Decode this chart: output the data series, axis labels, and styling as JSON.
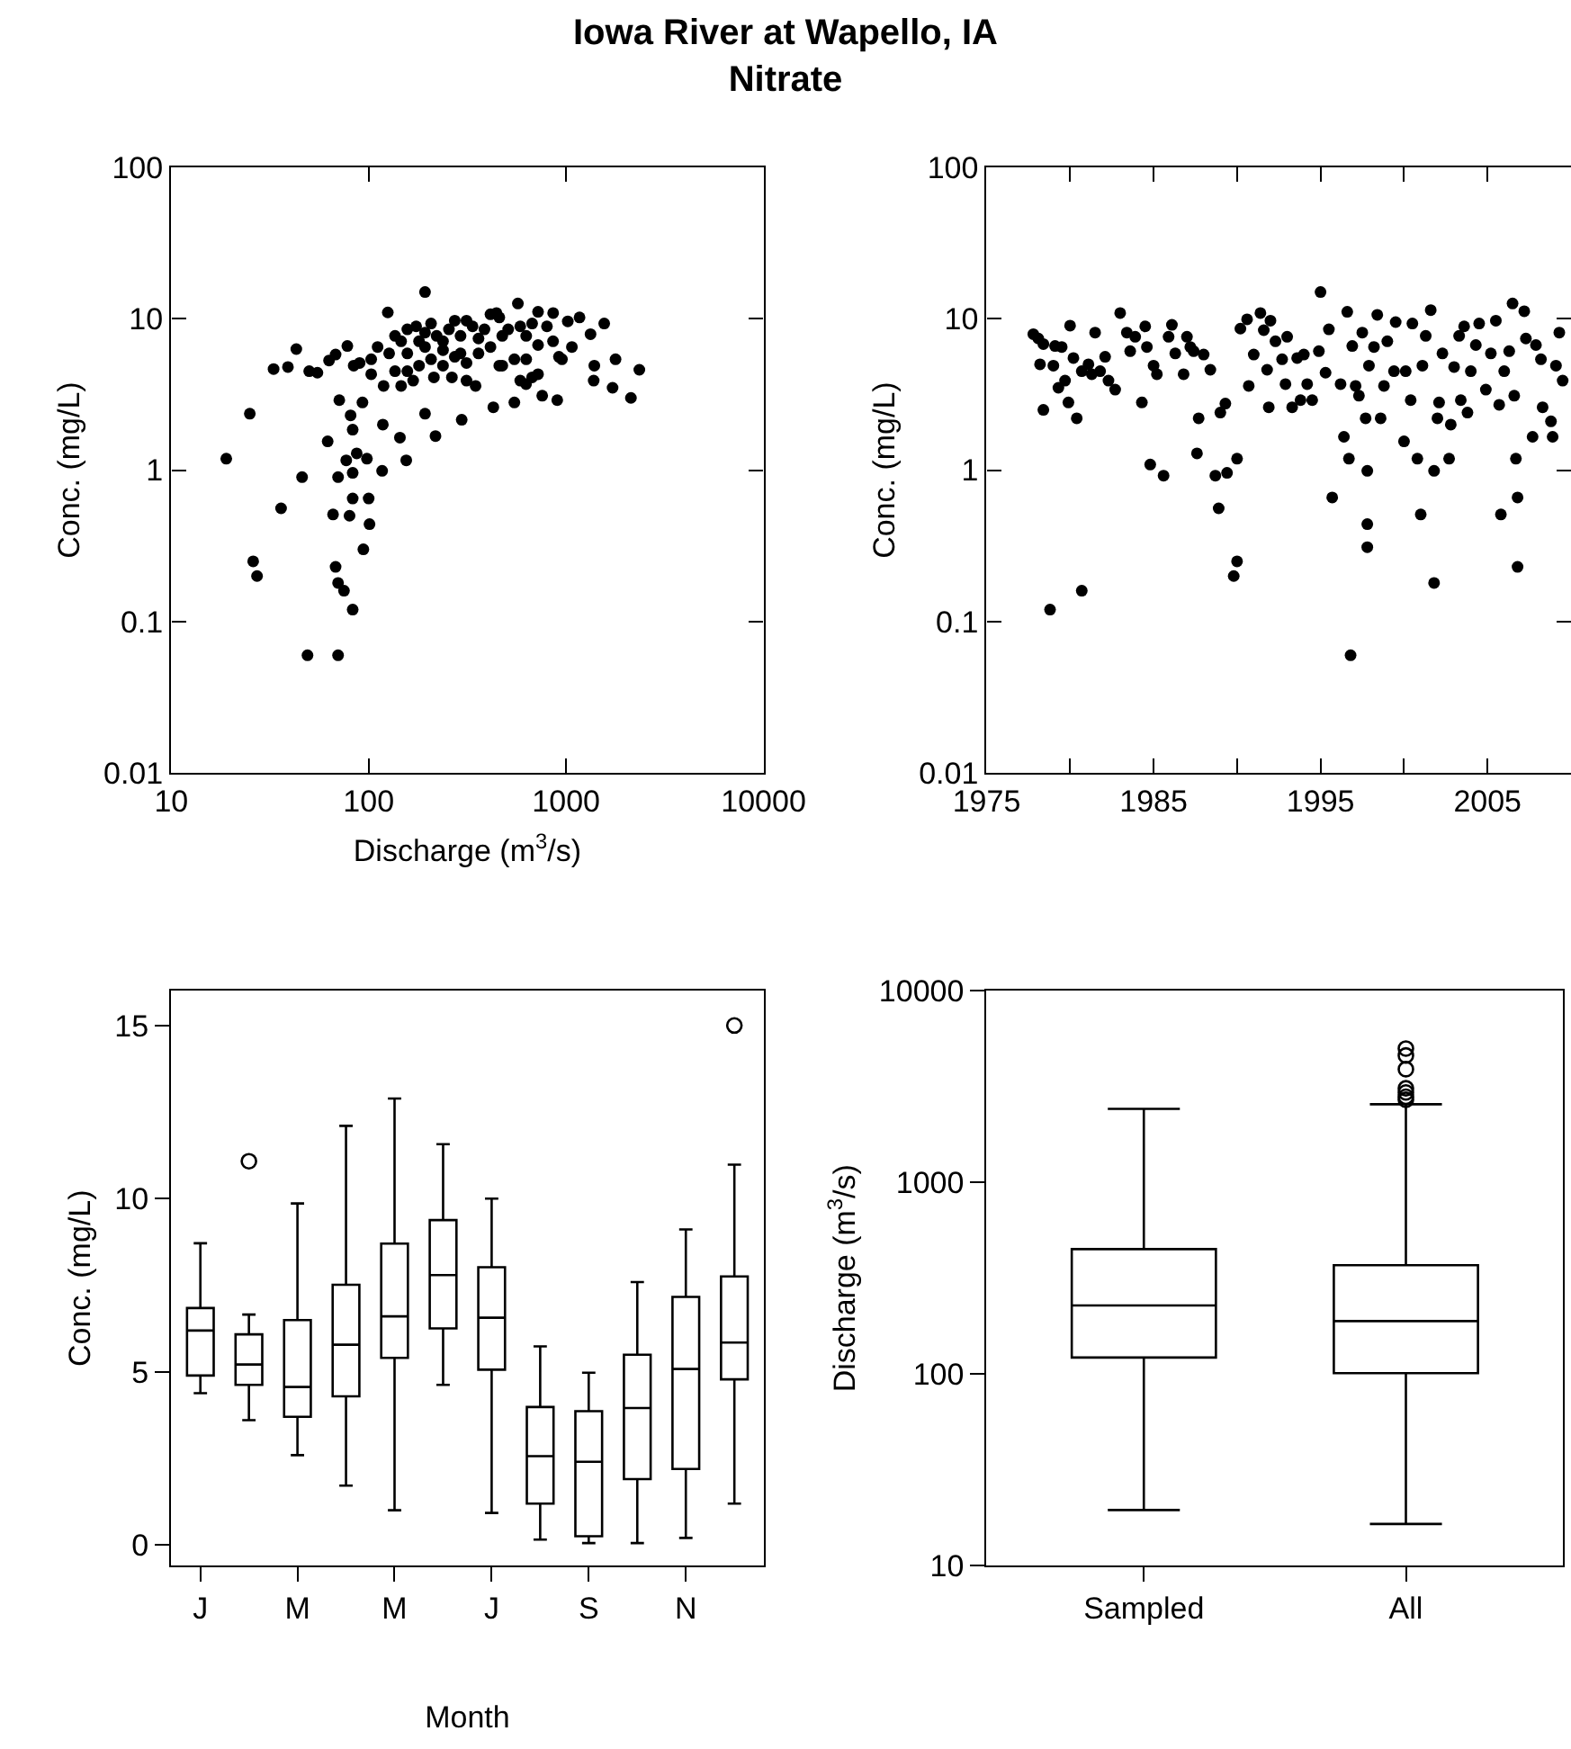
{
  "chart_data": [
    {
      "type": "scatter",
      "title": "Iowa River at Wapello, IA",
      "subtitle": "Nitrate",
      "xlabel": "Discharge (m$^{3}$/s)",
      "ylabel": "Conc. (mg/L)",
      "log": "xy",
      "marker": "circle",
      "color": "#000000",
      "xlim": [
        10,
        10000
      ],
      "xticks": [
        10,
        100,
        1000,
        10000
      ],
      "ylim": [
        0.01,
        100
      ],
      "yticks": [
        0.01,
        0.1,
        1,
        10,
        100
      ],
      "x": [
        19,
        25,
        26,
        27.2,
        36,
        46,
        49,
        70,
        68,
        70,
        75,
        83,
        94,
        101,
        66,
        80,
        83,
        100,
        62,
        70,
        83,
        77,
        87,
        98,
        117,
        155,
        144,
        218,
        83,
        81,
        71,
        93,
        118,
        193,
        296,
        428,
        547,
        902,
        2130,
        2350,
        1780,
        1720,
        1380,
        1390,
        1560,
        1330,
        1170,
        1020,
        1070,
        757,
        627,
        193,
        125,
        43,
        33,
        39,
        50,
        55,
        63,
        68,
        78,
        570,
        721,
        860,
        444,
        84,
        90,
        103,
        111,
        127,
        136,
        146,
        157,
        174,
        180,
        193,
        207,
        221,
        238,
        255,
        273,
        292,
        313,
        336,
        360,
        386,
        414,
        459,
        475,
        509,
        586,
        628,
        673,
        721,
        800,
        859,
        920,
        953,
        103,
        119,
        146,
        157,
        180,
        207,
        238,
        273,
        313,
        360,
        414,
        475,
        547,
        628,
        673,
        721,
        157,
        193,
        238,
        292,
        136,
        168,
        214,
        264,
        313,
        348,
        459,
        586
      ],
      "values": [
        1.19,
        2.36,
        0.25,
        0.2,
        0.56,
        0.9,
        0.06,
        0.06,
        0.23,
        0.18,
        0.16,
        0.12,
        0.3,
        0.44,
        0.51,
        0.5,
        0.65,
        0.65,
        1.55,
        0.9,
        0.96,
        1.16,
        1.29,
        1.19,
        0.99,
        1.16,
        1.64,
        1.68,
        1.85,
        2.3,
        2.9,
        2.8,
        2.0,
        2.36,
        2.15,
        2.6,
        2.8,
        2.9,
        3.0,
        4.6,
        5.4,
        3.5,
        3.9,
        4.9,
        9.3,
        7.9,
        10.2,
        9.6,
        6.5,
        3.1,
        3.7,
        15,
        11,
        6.3,
        4.65,
        4.8,
        4.5,
        4.4,
        5.3,
        5.8,
        6.6,
        12.6,
        11.1,
        10.9,
        10.9,
        4.9,
        5.1,
        5.4,
        6.5,
        5.9,
        7.7,
        7.1,
        8.5,
        8.9,
        7.1,
        8.1,
        9.3,
        7.7,
        7.1,
        8.5,
        9.7,
        7.7,
        9.7,
        8.9,
        7.4,
        8.5,
        10.7,
        10.2,
        7.7,
        8.5,
        8.9,
        7.7,
        9.3,
        6.7,
        8.9,
        7.1,
        5.6,
        5.4,
        4.3,
        3.6,
        3.6,
        4.5,
        4.9,
        5.4,
        4.9,
        5.6,
        5.1,
        5.9,
        6.5,
        4.9,
        5.4,
        5.4,
        4.1,
        4.3,
        5.9,
        6.5,
        6.2,
        5.9,
        4.5,
        3.9,
        4.1,
        4.1,
        3.9,
        3.6,
        4.9,
        3.9
      ]
    },
    {
      "type": "scatter",
      "ylabel": "Conc. (mg/L)",
      "log": "y",
      "marker": "circle",
      "color": "#000000",
      "xlim": [
        1975,
        2010
      ],
      "xticks": [
        1975,
        {
          "value": 1980,
          "label": null
        },
        1985,
        {
          "value": 1990,
          "label": null
        },
        1995,
        {
          "value": 2000,
          "label": null
        },
        2005,
        {
          "value": 2010,
          "label": null
        }
      ],
      "ylim": [
        0.01,
        100
      ],
      "yticks": [
        0.01,
        0.1,
        1,
        10,
        100
      ],
      "x": [
        1977.8,
        1978.1,
        1978.4,
        1978.2,
        1978.4,
        1978.8,
        1979.0,
        1979.1,
        1979.3,
        1979.5,
        1979.7,
        1979.9,
        1980.0,
        1980.2,
        1980.4,
        1980.7,
        1980.7,
        1981.1,
        1981.3,
        1981.5,
        1981.8,
        1982.1,
        1982.3,
        1982.7,
        1983.0,
        1983.4,
        1983.6,
        1983.9,
        1984.3,
        1984.5,
        1984.6,
        1984.8,
        1985.0,
        1985.2,
        1985.6,
        1985.9,
        1986.1,
        1986.3,
        1986.8,
        1987.0,
        1987.2,
        1987.4,
        1987.6,
        1987.7,
        1988.0,
        1988.4,
        1988.7,
        1988.9,
        1989.0,
        1989.3,
        1989.4,
        1989.8,
        1990.0,
        1990.0,
        1990.2,
        1990.6,
        1990.7,
        1991.0,
        1991.4,
        1991.6,
        1991.8,
        1991.9,
        1992.0,
        1992.3,
        1992.7,
        1992.9,
        1993.0,
        1993.3,
        1993.6,
        1993.8,
        1994.0,
        1994.2,
        1994.5,
        1994.9,
        1995.0,
        1995.3,
        1995.5,
        1995.7,
        1996.2,
        1996.4,
        1996.6,
        1996.7,
        1996.8,
        1996.9,
        1997.1,
        1997.3,
        1997.5,
        1997.7,
        1997.8,
        1997.8,
        1997.8,
        1997.9,
        1998.2,
        1998.4,
        1998.6,
        1998.8,
        1999.0,
        1999.4,
        1999.5,
        2000.0,
        2000.1,
        2000.4,
        2000.5,
        2000.8,
        2001.0,
        2001.1,
        2001.3,
        2001.6,
        2001.8,
        2001.8,
        2002.0,
        2002.1,
        2002.3,
        2002.7,
        2002.8,
        2003.0,
        2003.3,
        2003.4,
        2003.6,
        2003.8,
        2004.0,
        2004.3,
        2004.5,
        2004.9,
        2005.2,
        2005.5,
        2005.7,
        2005.8,
        2006.0,
        2006.3,
        2006.5,
        2006.6,
        2006.7,
        2006.8,
        2006.8,
        2007.2,
        2007.3,
        2007.7,
        2007.9,
        2008.2,
        2008.3,
        2008.8,
        2008.9,
        2009.1,
        2009.3,
        2009.5
      ],
      "values": [
        7.9,
        7.4,
        6.8,
        5.0,
        2.5,
        0.12,
        4.9,
        6.6,
        3.5,
        6.5,
        3.9,
        2.8,
        9.0,
        5.5,
        2.2,
        0.16,
        4.5,
        5.0,
        4.3,
        8.1,
        4.5,
        5.6,
        3.9,
        3.4,
        10.9,
        8.1,
        6.1,
        7.6,
        2.8,
        8.9,
        6.5,
        1.09,
        4.9,
        4.3,
        0.92,
        7.6,
        9.1,
        5.9,
        4.3,
        7.6,
        6.5,
        6.1,
        1.29,
        2.2,
        5.8,
        4.6,
        0.92,
        0.56,
        2.4,
        2.75,
        0.96,
        0.2,
        0.25,
        1.19,
        8.6,
        9.9,
        3.6,
        5.8,
        10.9,
        8.4,
        4.6,
        2.6,
        9.7,
        7.1,
        5.4,
        3.7,
        7.6,
        2.6,
        5.5,
        2.9,
        5.8,
        3.7,
        2.9,
        6.1,
        15,
        4.4,
        8.5,
        0.66,
        3.7,
        1.66,
        11.1,
        1.19,
        0.06,
        6.6,
        3.6,
        3.1,
        8.1,
        2.2,
        0.99,
        0.44,
        0.31,
        4.9,
        6.5,
        10.6,
        2.2,
        3.6,
        7.1,
        4.5,
        9.5,
        1.55,
        4.5,
        2.9,
        9.3,
        1.19,
        0.51,
        4.9,
        7.7,
        11.4,
        0.18,
        0.99,
        2.2,
        2.8,
        5.9,
        1.19,
        2.0,
        4.8,
        7.7,
        2.9,
        8.9,
        2.4,
        4.5,
        6.7,
        9.3,
        3.4,
        5.9,
        9.7,
        2.7,
        0.51,
        4.5,
        6.1,
        12.6,
        3.1,
        1.19,
        0.66,
        0.23,
        11.2,
        7.4,
        1.66,
        6.7,
        5.4,
        2.6,
        2.1,
        1.66,
        4.9,
        8.1,
        3.9
      ]
    },
    {
      "type": "box",
      "xlabel": "Month",
      "ylabel": "Conc. (mg/L)",
      "color": "#000000",
      "categories": [
        "J",
        null,
        "M",
        null,
        "M",
        null,
        "J",
        null,
        "S",
        null,
        "N",
        null
      ],
      "ylim": [
        -0.6,
        16
      ],
      "yticks": [
        0,
        5,
        10,
        15
      ],
      "boxes": [
        {
          "low": 4.38,
          "q1": 4.89,
          "median": 6.19,
          "q3": 6.84,
          "high": 8.71
        },
        {
          "low": 3.6,
          "q1": 4.62,
          "median": 5.21,
          "q3": 6.08,
          "high": 6.65,
          "outliers": [
            11.08
          ]
        },
        {
          "low": 2.59,
          "q1": 3.7,
          "median": 4.56,
          "q3": 6.49,
          "high": 9.86
        },
        {
          "low": 1.71,
          "q1": 4.29,
          "median": 5.78,
          "q3": 7.51,
          "high": 12.1
        },
        {
          "low": 1.0,
          "q1": 5.4,
          "median": 6.6,
          "q3": 8.7,
          "high": 12.89
        },
        {
          "low": 4.62,
          "q1": 6.25,
          "median": 7.79,
          "q3": 9.38,
          "high": 11.57
        },
        {
          "low": 0.92,
          "q1": 5.06,
          "median": 6.56,
          "q3": 8.02,
          "high": 10.0
        },
        {
          "low": 0.15,
          "q1": 1.19,
          "median": 2.56,
          "q3": 3.98,
          "high": 5.73
        },
        {
          "low": 0.05,
          "q1": 0.25,
          "median": 2.4,
          "q3": 3.86,
          "high": 4.97
        },
        {
          "low": 0.05,
          "q1": 1.9,
          "median": 3.95,
          "q3": 5.49,
          "high": 7.59
        },
        {
          "low": 0.2,
          "q1": 2.19,
          "median": 5.08,
          "q3": 7.16,
          "high": 9.11
        },
        {
          "low": 1.19,
          "q1": 4.78,
          "median": 5.84,
          "q3": 7.75,
          "high": 10.98,
          "outliers": [
            15
          ]
        }
      ]
    },
    {
      "type": "box",
      "ylabel": "Discharge (m$^{3}$/s)",
      "log": "y",
      "color": "#000000",
      "categories": [
        "Sampled",
        "All"
      ],
      "ylim": [
        10,
        10000
      ],
      "yticks": [
        10,
        100,
        1000,
        10000
      ],
      "boxes": [
        {
          "low": 19.5,
          "q1": 122,
          "median": 228,
          "q3": 449,
          "high": 2420
        },
        {
          "low": 16.5,
          "q1": 101,
          "median": 189,
          "q3": 370,
          "high": 2560,
          "outliers": [
            2700,
            2800,
            2950,
            3100,
            3900,
            4600,
            5000
          ]
        }
      ]
    }
  ]
}
